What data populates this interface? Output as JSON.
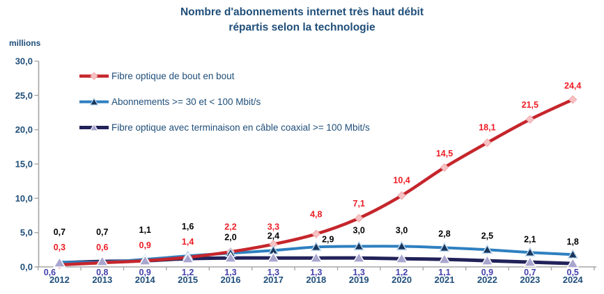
{
  "title": {
    "line1": "Nombre d'abonnements internet très haut débit",
    "line2": "répartis selon la technologie"
  },
  "y_axis": {
    "unit_label": "millions",
    "tick_labels": [
      "30,0",
      "25,0",
      "20,0",
      "15,0",
      "10,0",
      "5,0",
      "0,0"
    ]
  },
  "chart_data": {
    "type": "line",
    "title": "Nombre d'abonnements internet très haut débit répartis selon la technologie",
    "unit": "millions",
    "categories": [
      "2012",
      "2013",
      "2014",
      "2015",
      "2016",
      "2017",
      "2018",
      "2019",
      "2020",
      "2021",
      "2022",
      "2023",
      "2024"
    ],
    "ylim": [
      0,
      30
    ],
    "ytick_step": 5,
    "grid": false,
    "legend_position": "top-left-inside",
    "decimal_format": "comma",
    "series": [
      {
        "name": "Fibre optique de bout en bout",
        "values": [
          0.3,
          0.6,
          0.9,
          1.4,
          2.2,
          3.3,
          4.8,
          7.1,
          10.4,
          14.5,
          18.1,
          21.5,
          24.4
        ],
        "line_color": "#C5262C",
        "label_color": "#EC1C24",
        "marker": "diamond",
        "marker_fill": "#F6C2C4",
        "marker_stroke": "#F0A9AC"
      },
      {
        "name": "Abonnements >= 30 et < 100 Mbit/s",
        "values": [
          0.7,
          0.7,
          1.1,
          1.6,
          2.0,
          2.4,
          2.9,
          3.0,
          3.0,
          2.8,
          2.5,
          2.1,
          1.8
        ],
        "line_color": "#2E80C0",
        "label_color": "#000000",
        "marker": "triangle",
        "marker_fill": "#17365D",
        "marker_stroke": "#BDD7EE"
      },
      {
        "name": "Fibre optique avec terminaison en câble coaxial >= 100 Mbit/s",
        "values": [
          0.6,
          0.8,
          0.9,
          1.2,
          1.3,
          1.3,
          1.3,
          1.3,
          1.2,
          1.1,
          0.9,
          0.7,
          0.5
        ],
        "line_color": "#22225A",
        "label_color": "#4441AE",
        "marker": "triangle",
        "marker_fill": "#A8A5CE",
        "marker_stroke": "#FFFFFF"
      }
    ]
  },
  "colors": {
    "heading": "#1F4E79",
    "axis": "#A6A6A6",
    "year_labels": "#1F4E79"
  }
}
